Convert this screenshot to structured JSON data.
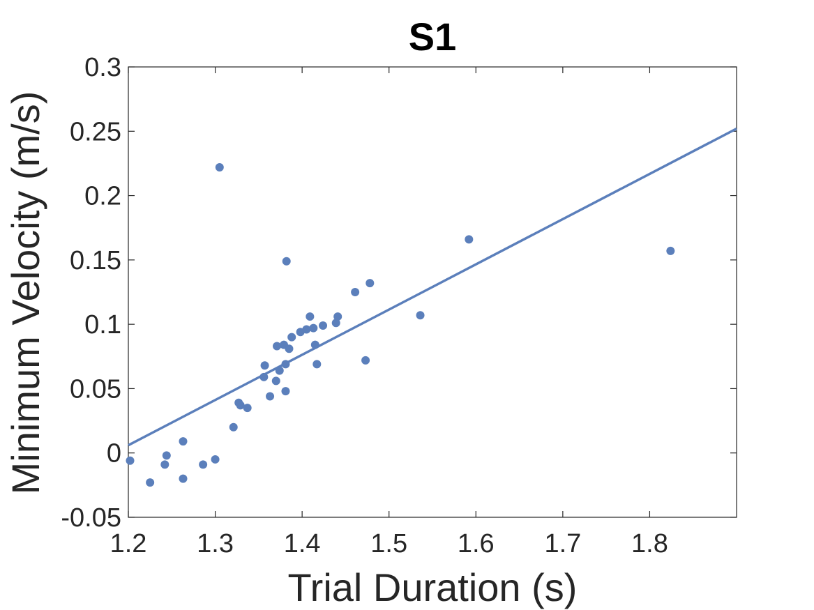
{
  "chart_data": {
    "type": "scatter",
    "title": "S1",
    "xlabel": "Trial Duration (s)",
    "ylabel": "Minimum Velocity (m/s)",
    "xlim": [
      1.2,
      1.9
    ],
    "ylim": [
      -0.05,
      0.3
    ],
    "xticks": [
      1.2,
      1.3,
      1.4,
      1.5,
      1.6,
      1.7,
      1.8
    ],
    "xtick_labels": [
      "1.2",
      "1.3",
      "1.4",
      "1.5",
      "1.6",
      "1.7",
      "1.8"
    ],
    "yticks": [
      -0.05,
      0,
      0.05,
      0.1,
      0.15,
      0.2,
      0.25,
      0.3
    ],
    "ytick_labels": [
      "-0.05",
      "0",
      "0.05",
      "0.1",
      "0.15",
      "0.2",
      "0.25",
      "0.3"
    ],
    "grid": false,
    "color": "#5b7fbb",
    "points": [
      {
        "x": 1.202,
        "y": -0.006
      },
      {
        "x": 1.225,
        "y": -0.023
      },
      {
        "x": 1.242,
        "y": -0.009
      },
      {
        "x": 1.244,
        "y": -0.002
      },
      {
        "x": 1.263,
        "y": 0.009
      },
      {
        "x": 1.263,
        "y": -0.02
      },
      {
        "x": 1.286,
        "y": -0.009
      },
      {
        "x": 1.3,
        "y": -0.005
      },
      {
        "x": 1.305,
        "y": 0.222
      },
      {
        "x": 1.321,
        "y": 0.02
      },
      {
        "x": 1.327,
        "y": 0.039
      },
      {
        "x": 1.329,
        "y": 0.037
      },
      {
        "x": 1.337,
        "y": 0.035
      },
      {
        "x": 1.356,
        "y": 0.059
      },
      {
        "x": 1.357,
        "y": 0.068
      },
      {
        "x": 1.363,
        "y": 0.044
      },
      {
        "x": 1.37,
        "y": 0.056
      },
      {
        "x": 1.371,
        "y": 0.083
      },
      {
        "x": 1.374,
        "y": 0.064
      },
      {
        "x": 1.379,
        "y": 0.084
      },
      {
        "x": 1.381,
        "y": 0.048
      },
      {
        "x": 1.381,
        "y": 0.069
      },
      {
        "x": 1.382,
        "y": 0.149
      },
      {
        "x": 1.385,
        "y": 0.081
      },
      {
        "x": 1.388,
        "y": 0.09
      },
      {
        "x": 1.398,
        "y": 0.094
      },
      {
        "x": 1.405,
        "y": 0.096
      },
      {
        "x": 1.409,
        "y": 0.106
      },
      {
        "x": 1.413,
        "y": 0.097
      },
      {
        "x": 1.415,
        "y": 0.084
      },
      {
        "x": 1.417,
        "y": 0.069
      },
      {
        "x": 1.424,
        "y": 0.099
      },
      {
        "x": 1.439,
        "y": 0.101
      },
      {
        "x": 1.441,
        "y": 0.106
      },
      {
        "x": 1.461,
        "y": 0.125
      },
      {
        "x": 1.473,
        "y": 0.072
      },
      {
        "x": 1.478,
        "y": 0.132
      },
      {
        "x": 1.536,
        "y": 0.107
      },
      {
        "x": 1.592,
        "y": 0.166
      },
      {
        "x": 1.824,
        "y": 0.157
      }
    ],
    "fit_line": {
      "x": [
        1.2,
        1.9
      ],
      "y": [
        0.006,
        0.252
      ]
    }
  }
}
